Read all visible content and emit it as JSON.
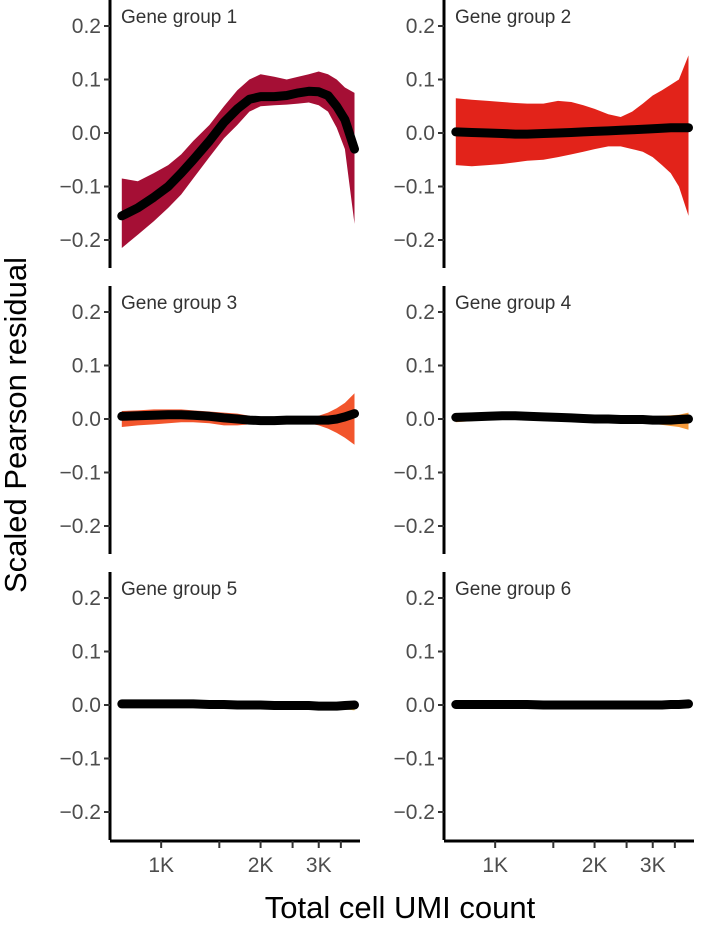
{
  "chart_data": {
    "type": "area",
    "xlabel": "Total cell UMI count",
    "ylabel": "Scaled Pearson residual",
    "x_scale": "log",
    "xlim": [
      700,
      4000
    ],
    "ylim": [
      -0.25,
      0.25
    ],
    "x_ticks": [
      {
        "value": 1000,
        "label": "1K"
      },
      {
        "value": 1500,
        "label": ""
      },
      {
        "value": 2000,
        "label": "2K"
      },
      {
        "value": 2500,
        "label": ""
      },
      {
        "value": 3000,
        "label": "3K"
      },
      {
        "value": 3500,
        "label": ""
      }
    ],
    "y_ticks": [
      {
        "value": 0.2,
        "label": "0.2"
      },
      {
        "value": 0.1,
        "label": "0.1"
      },
      {
        "value": 0.0,
        "label": "0.0"
      },
      {
        "value": -0.1,
        "label": "−0.1"
      },
      {
        "value": -0.2,
        "label": "−0.2"
      }
    ],
    "grid": false,
    "panels": [
      {
        "title": "Gene group 1",
        "band_color": "#a50f35",
        "line_color": "#000000",
        "x": [
          760,
          850,
          950,
          1050,
          1150,
          1250,
          1400,
          1550,
          1700,
          1850,
          2000,
          2200,
          2400,
          2600,
          2800,
          3000,
          3200,
          3400,
          3600,
          3850
        ],
        "mean": [
          -0.155,
          -0.14,
          -0.12,
          -0.1,
          -0.075,
          -0.05,
          -0.015,
          0.02,
          0.045,
          0.063,
          0.068,
          0.068,
          0.07,
          0.075,
          0.078,
          0.077,
          0.07,
          0.05,
          0.025,
          -0.03
        ],
        "lower": [
          -0.215,
          -0.19,
          -0.165,
          -0.14,
          -0.115,
          -0.085,
          -0.045,
          -0.01,
          0.015,
          0.04,
          0.05,
          0.052,
          0.053,
          0.055,
          0.057,
          0.052,
          0.04,
          0.01,
          -0.03,
          -0.17
        ],
        "upper": [
          -0.085,
          -0.09,
          -0.075,
          -0.06,
          -0.04,
          -0.015,
          0.015,
          0.05,
          0.08,
          0.1,
          0.11,
          0.105,
          0.1,
          0.105,
          0.11,
          0.115,
          0.11,
          0.1,
          0.085,
          0.075
        ]
      },
      {
        "title": "Gene group 2",
        "band_color": "#e2231a",
        "line_color": "#000000",
        "x": [
          760,
          850,
          950,
          1050,
          1150,
          1250,
          1400,
          1550,
          1700,
          1850,
          2000,
          2200,
          2400,
          2600,
          2800,
          3000,
          3200,
          3400,
          3600,
          3850
        ],
        "mean": [
          0.002,
          0.001,
          0.0,
          -0.001,
          -0.002,
          -0.002,
          -0.001,
          0.0,
          0.001,
          0.002,
          0.003,
          0.004,
          0.005,
          0.006,
          0.007,
          0.008,
          0.009,
          0.01,
          0.01,
          0.01
        ],
        "lower": [
          -0.06,
          -0.062,
          -0.06,
          -0.058,
          -0.055,
          -0.052,
          -0.05,
          -0.045,
          -0.04,
          -0.035,
          -0.03,
          -0.025,
          -0.025,
          -0.03,
          -0.035,
          -0.045,
          -0.06,
          -0.075,
          -0.1,
          -0.155
        ],
        "upper": [
          0.065,
          0.062,
          0.06,
          0.058,
          0.056,
          0.055,
          0.055,
          0.06,
          0.058,
          0.052,
          0.045,
          0.035,
          0.03,
          0.04,
          0.055,
          0.07,
          0.08,
          0.09,
          0.1,
          0.145
        ]
      },
      {
        "title": "Gene group 3",
        "band_color": "#f2552c",
        "line_color": "#000000",
        "x": [
          760,
          850,
          950,
          1050,
          1150,
          1250,
          1400,
          1550,
          1700,
          1850,
          2000,
          2200,
          2400,
          2600,
          2800,
          3000,
          3200,
          3400,
          3600,
          3850
        ],
        "mean": [
          0.005,
          0.006,
          0.007,
          0.008,
          0.008,
          0.007,
          0.005,
          0.002,
          0.0,
          -0.002,
          -0.003,
          -0.003,
          -0.002,
          -0.002,
          -0.002,
          -0.002,
          -0.002,
          0.0,
          0.004,
          0.01
        ],
        "lower": [
          -0.015,
          -0.012,
          -0.01,
          -0.008,
          -0.006,
          -0.006,
          -0.008,
          -0.012,
          -0.012,
          -0.01,
          -0.008,
          -0.006,
          -0.005,
          -0.006,
          -0.008,
          -0.012,
          -0.018,
          -0.026,
          -0.035,
          -0.048
        ],
        "upper": [
          0.015,
          0.016,
          0.018,
          0.018,
          0.018,
          0.016,
          0.014,
          0.012,
          0.01,
          0.006,
          0.002,
          0.0,
          0.0,
          0.0,
          0.002,
          0.006,
          0.012,
          0.02,
          0.03,
          0.048
        ]
      },
      {
        "title": "Gene group 4",
        "band_color": "#f59a3a",
        "line_color": "#000000",
        "x": [
          760,
          850,
          950,
          1050,
          1150,
          1250,
          1400,
          1550,
          1700,
          1850,
          2000,
          2200,
          2400,
          2600,
          2800,
          3000,
          3200,
          3400,
          3600,
          3850
        ],
        "mean": [
          0.003,
          0.004,
          0.005,
          0.006,
          0.006,
          0.005,
          0.004,
          0.003,
          0.002,
          0.001,
          0.0,
          0.0,
          -0.001,
          -0.001,
          -0.001,
          -0.002,
          -0.002,
          -0.002,
          -0.001,
          0.0
        ],
        "lower": [
          -0.006,
          -0.004,
          -0.002,
          0.0,
          0.0,
          -0.001,
          -0.002,
          -0.003,
          -0.004,
          -0.005,
          -0.005,
          -0.006,
          -0.007,
          -0.007,
          -0.008,
          -0.009,
          -0.011,
          -0.013,
          -0.015,
          -0.02
        ],
        "upper": [
          0.008,
          0.01,
          0.011,
          0.012,
          0.012,
          0.011,
          0.01,
          0.009,
          0.008,
          0.007,
          0.006,
          0.005,
          0.005,
          0.005,
          0.005,
          0.005,
          0.006,
          0.007,
          0.008,
          0.012
        ]
      },
      {
        "title": "Gene group 5",
        "band_color": "#f6c343",
        "line_color": "#000000",
        "x": [
          760,
          850,
          950,
          1050,
          1150,
          1250,
          1400,
          1550,
          1700,
          1850,
          2000,
          2200,
          2400,
          2600,
          2800,
          3000,
          3200,
          3400,
          3600,
          3850
        ],
        "mean": [
          0.002,
          0.002,
          0.002,
          0.002,
          0.002,
          0.002,
          0.001,
          0.001,
          0.0,
          0.0,
          0.0,
          -0.001,
          -0.001,
          -0.001,
          -0.001,
          -0.002,
          -0.002,
          -0.002,
          -0.001,
          0.0
        ],
        "lower": [
          -0.002,
          -0.002,
          -0.002,
          -0.002,
          -0.002,
          -0.002,
          -0.003,
          -0.003,
          -0.003,
          -0.003,
          -0.004,
          -0.004,
          -0.004,
          -0.005,
          -0.005,
          -0.006,
          -0.006,
          -0.007,
          -0.008,
          -0.01
        ],
        "upper": [
          0.005,
          0.005,
          0.005,
          0.005,
          0.005,
          0.005,
          0.005,
          0.004,
          0.004,
          0.003,
          0.003,
          0.003,
          0.003,
          0.003,
          0.003,
          0.003,
          0.003,
          0.003,
          0.004,
          0.005
        ]
      },
      {
        "title": "Gene group 6",
        "band_color": "#f7d96a",
        "line_color": "#000000",
        "x": [
          760,
          850,
          950,
          1050,
          1150,
          1250,
          1400,
          1550,
          1700,
          1850,
          2000,
          2200,
          2400,
          2600,
          2800,
          3000,
          3200,
          3400,
          3600,
          3850
        ],
        "mean": [
          0.001,
          0.001,
          0.001,
          0.001,
          0.001,
          0.001,
          0.0,
          0.0,
          0.0,
          0.0,
          0.0,
          0.0,
          0.0,
          0.0,
          0.0,
          0.0,
          0.0,
          0.001,
          0.001,
          0.002
        ],
        "lower": [
          -0.002,
          -0.002,
          -0.002,
          -0.002,
          -0.002,
          -0.002,
          -0.002,
          -0.002,
          -0.002,
          -0.002,
          -0.002,
          -0.002,
          -0.002,
          -0.002,
          -0.002,
          -0.002,
          -0.002,
          -0.002,
          -0.002,
          -0.002
        ],
        "upper": [
          0.003,
          0.003,
          0.003,
          0.003,
          0.003,
          0.003,
          0.003,
          0.003,
          0.003,
          0.003,
          0.003,
          0.003,
          0.003,
          0.003,
          0.003,
          0.003,
          0.003,
          0.003,
          0.004,
          0.005
        ]
      }
    ]
  }
}
